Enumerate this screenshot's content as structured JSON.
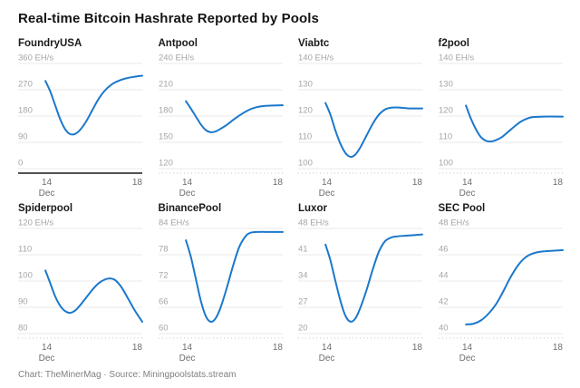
{
  "footer": {
    "credit": "Chart: TheMinerMag · Source: Miningpoolstats.stream"
  },
  "style": {
    "line_color": "#1b78cc",
    "grid_color": "#e8e8e8",
    "y_label_color": "#a5a5a5",
    "x_label_color": "#6e6e6e",
    "zero_baseline_color": "#3a3a3a",
    "broken_baseline_color": "#c8c8c8"
  },
  "chart_data": {
    "type": "line",
    "title": "Real-time Bitcoin Hashrate Reported by Pools",
    "unit": "EH/s",
    "grid": true,
    "legend_position": "none",
    "x_axis": {
      "ticks": [
        {
          "label": "14",
          "sub": "Dec",
          "pos": 0.23
        },
        {
          "label": "18",
          "sub": "",
          "pos": 1.0
        }
      ],
      "range_note": "Dec 14 to Dec 18"
    },
    "panels": [
      {
        "title": "FoundryUSA",
        "y_ticks": [
          360,
          270,
          180,
          90,
          0
        ],
        "zero_baseline": true,
        "points": [
          [
            0.22,
            300
          ],
          [
            0.26,
            263
          ],
          [
            0.3,
            215
          ],
          [
            0.34,
            168
          ],
          [
            0.38,
            134
          ],
          [
            0.42,
            118
          ],
          [
            0.46,
            119
          ],
          [
            0.5,
            133
          ],
          [
            0.55,
            163
          ],
          [
            0.6,
            202
          ],
          [
            0.65,
            240
          ],
          [
            0.7,
            268
          ],
          [
            0.75,
            287
          ],
          [
            0.8,
            299
          ],
          [
            0.86,
            308
          ],
          [
            0.93,
            314
          ],
          [
            1,
            318
          ]
        ]
      },
      {
        "title": "Antpool",
        "y_ticks": [
          240,
          210,
          180,
          150,
          120
        ],
        "zero_baseline": false,
        "points": [
          [
            0.22,
            197
          ],
          [
            0.26,
            188.5
          ],
          [
            0.3,
            179.5
          ],
          [
            0.34,
            170.5
          ],
          [
            0.38,
            164
          ],
          [
            0.42,
            161.5
          ],
          [
            0.46,
            162.5
          ],
          [
            0.5,
            165.5
          ],
          [
            0.55,
            170
          ],
          [
            0.6,
            175.5
          ],
          [
            0.66,
            181.5
          ],
          [
            0.72,
            186.5
          ],
          [
            0.78,
            189.8
          ],
          [
            0.85,
            191.5
          ],
          [
            0.92,
            192
          ],
          [
            1,
            192.3
          ]
        ]
      },
      {
        "title": "Viabtc",
        "y_ticks": [
          140,
          130,
          120,
          110,
          100
        ],
        "zero_baseline": false,
        "points": [
          [
            0.22,
            125
          ],
          [
            0.26,
            120.5
          ],
          [
            0.3,
            114.5
          ],
          [
            0.34,
            109.5
          ],
          [
            0.38,
            106
          ],
          [
            0.42,
            104.5
          ],
          [
            0.46,
            105.3
          ],
          [
            0.5,
            108
          ],
          [
            0.55,
            112.5
          ],
          [
            0.6,
            117
          ],
          [
            0.65,
            120.5
          ],
          [
            0.7,
            122.5
          ],
          [
            0.75,
            123.2
          ],
          [
            0.82,
            123.2
          ],
          [
            0.9,
            122.9
          ],
          [
            1,
            122.9
          ]
        ]
      },
      {
        "title": "f2pool",
        "y_ticks": [
          140,
          130,
          120,
          110,
          100
        ],
        "zero_baseline": false,
        "points": [
          [
            0.22,
            124
          ],
          [
            0.26,
            119
          ],
          [
            0.3,
            115
          ],
          [
            0.34,
            112
          ],
          [
            0.38,
            110.6
          ],
          [
            0.42,
            110.3
          ],
          [
            0.46,
            110.8
          ],
          [
            0.51,
            112
          ],
          [
            0.56,
            114
          ],
          [
            0.61,
            116
          ],
          [
            0.66,
            117.8
          ],
          [
            0.71,
            119
          ],
          [
            0.76,
            119.6
          ],
          [
            0.85,
            119.8
          ],
          [
            1,
            119.8
          ]
        ]
      },
      {
        "title": "Spiderpool",
        "y_ticks": [
          120,
          110,
          100,
          90,
          80
        ],
        "zero_baseline": false,
        "points": [
          [
            0.22,
            104
          ],
          [
            0.26,
            99
          ],
          [
            0.3,
            94
          ],
          [
            0.34,
            90.5
          ],
          [
            0.38,
            88.5
          ],
          [
            0.42,
            87.9
          ],
          [
            0.46,
            88.8
          ],
          [
            0.5,
            90.8
          ],
          [
            0.55,
            93.8
          ],
          [
            0.6,
            96.8
          ],
          [
            0.65,
            99.2
          ],
          [
            0.7,
            100.6
          ],
          [
            0.74,
            101
          ],
          [
            0.78,
            100.4
          ],
          [
            0.83,
            97.8
          ],
          [
            0.88,
            93.8
          ],
          [
            0.94,
            88.8
          ],
          [
            1,
            84.5
          ]
        ]
      },
      {
        "title": "BinancePool",
        "y_ticks": [
          84,
          78,
          72,
          66,
          60
        ],
        "zero_baseline": false,
        "points": [
          [
            0.22,
            81.3
          ],
          [
            0.26,
            77.5
          ],
          [
            0.3,
            72.5
          ],
          [
            0.34,
            67.5
          ],
          [
            0.38,
            64
          ],
          [
            0.42,
            62.7
          ],
          [
            0.46,
            63.5
          ],
          [
            0.5,
            66
          ],
          [
            0.55,
            70.5
          ],
          [
            0.6,
            75.5
          ],
          [
            0.65,
            79.8
          ],
          [
            0.7,
            82.2
          ],
          [
            0.74,
            83
          ],
          [
            0.8,
            83.2
          ],
          [
            0.9,
            83.2
          ],
          [
            1,
            83.2
          ]
        ]
      },
      {
        "title": "Luxor",
        "y_ticks": [
          48,
          41,
          34,
          27,
          20
        ],
        "zero_baseline": false,
        "points": [
          [
            0.22,
            43.7
          ],
          [
            0.26,
            39.5
          ],
          [
            0.3,
            34
          ],
          [
            0.34,
            28.8
          ],
          [
            0.38,
            24.8
          ],
          [
            0.42,
            23.2
          ],
          [
            0.46,
            24
          ],
          [
            0.5,
            26.8
          ],
          [
            0.55,
            31.5
          ],
          [
            0.6,
            37
          ],
          [
            0.65,
            41.8
          ],
          [
            0.7,
            44.6
          ],
          [
            0.75,
            45.6
          ],
          [
            0.8,
            45.9
          ],
          [
            0.88,
            46.1
          ],
          [
            1,
            46.4
          ]
        ]
      },
      {
        "title": "SEC Pool",
        "y_ticks": [
          48,
          46,
          44,
          42,
          40
        ],
        "zero_baseline": false,
        "points": [
          [
            0.22,
            40.7
          ],
          [
            0.28,
            40.75
          ],
          [
            0.34,
            41
          ],
          [
            0.4,
            41.5
          ],
          [
            0.46,
            42.2
          ],
          [
            0.52,
            43.2
          ],
          [
            0.58,
            44.3
          ],
          [
            0.64,
            45.2
          ],
          [
            0.7,
            45.8
          ],
          [
            0.76,
            46.1
          ],
          [
            0.84,
            46.25
          ],
          [
            1,
            46.35
          ]
        ]
      }
    ]
  }
}
